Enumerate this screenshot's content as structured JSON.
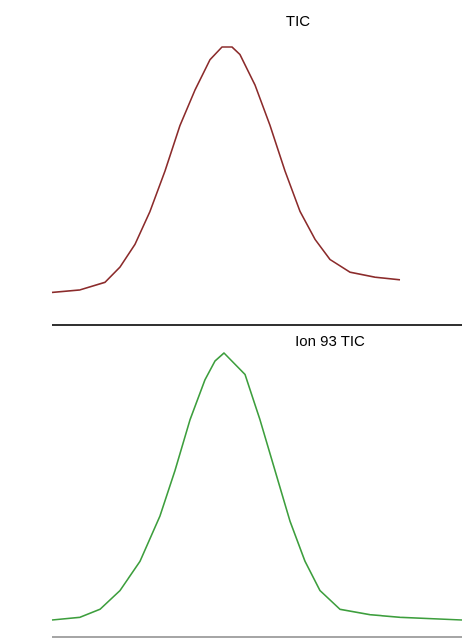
{
  "chart_data": [
    {
      "type": "line",
      "title": "TIC",
      "x": [
        0,
        2.8,
        5.3,
        6.8,
        8.3,
        9.8,
        11.3,
        12.8,
        14.3,
        15.8,
        17,
        18,
        18.8,
        20.3,
        21.8,
        23.3,
        24.8,
        26.3,
        27.8,
        29.8,
        32.3,
        34.8
      ],
      "series": [
        {
          "color": "#8b2b2b",
          "values": [
            3,
            4,
            7,
            13,
            22,
            35,
            51,
            69,
            83,
            95,
            100,
            100,
            97,
            85,
            69,
            51,
            35,
            24,
            16,
            11,
            9,
            8
          ]
        }
      ],
      "xlim": [
        0,
        41
      ],
      "ylim": [
        0,
        100
      ]
    },
    {
      "type": "line",
      "title": "Ion 93 TIC",
      "x": [
        0,
        2.8,
        4.8,
        6.8,
        8.8,
        10.8,
        12.3,
        13.8,
        15.3,
        16.3,
        17.2,
        19.3,
        20.8,
        22.3,
        23.8,
        25.3,
        26.8,
        28.8,
        31.8,
        34.8,
        41
      ],
      "series": [
        {
          "color": "#3d9e3d",
          "values": [
            0,
            1,
            4,
            11,
            22,
            39,
            56,
            75,
            90,
            97,
            100,
            92,
            75,
            56,
            37,
            22,
            11,
            4,
            2,
            1,
            0
          ]
        }
      ],
      "xlim": [
        0,
        41
      ],
      "ylim": [
        0,
        100
      ]
    }
  ]
}
